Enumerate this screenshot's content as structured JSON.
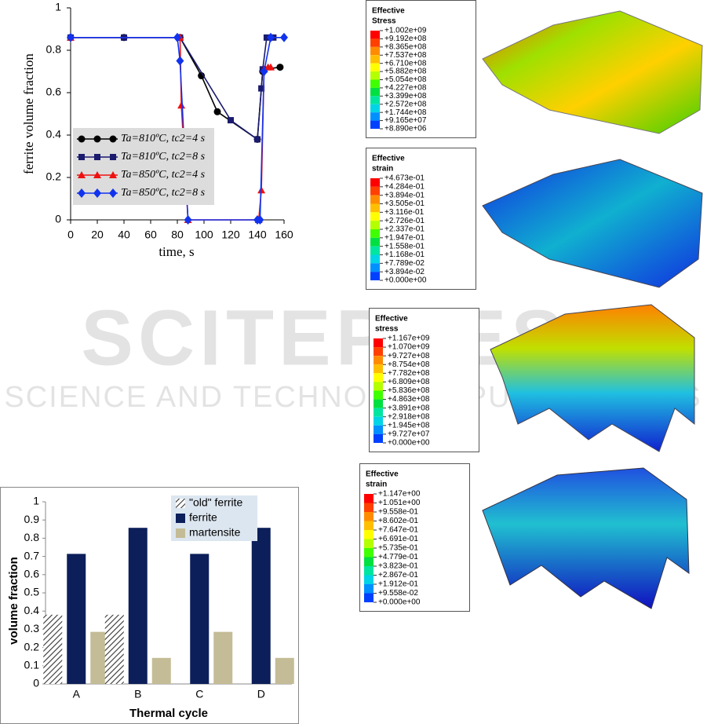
{
  "chart_data": [
    {
      "type": "line",
      "xlabel": "time, s",
      "ylabel": "ferrite volume fraction",
      "xlim": [
        0,
        160
      ],
      "xticks": [
        0,
        20,
        40,
        60,
        80,
        100,
        120,
        140,
        160
      ],
      "ylim": [
        0,
        1
      ],
      "yticks": [
        0,
        0.2,
        0.4,
        0.6,
        0.8,
        1
      ],
      "grid": false,
      "legend": "lower left",
      "series": [
        {
          "name": "Ta=810ºC, tc2=4 s",
          "color": "#000000",
          "marker": "circle",
          "x": [
            0,
            40,
            82,
            98,
            110,
            140,
            144,
            145,
            157
          ],
          "values": [
            0.86,
            0.86,
            0.86,
            0.68,
            0.51,
            0.38,
            0.7,
            0.71,
            0.72
          ]
        },
        {
          "name": "Ta=810ºC, tc2=8 s",
          "color": "#1a1a6e",
          "marker": "square",
          "x": [
            0,
            40,
            82,
            120,
            140,
            143,
            144,
            147,
            152
          ],
          "values": [
            0.86,
            0.86,
            0.86,
            0.47,
            0.38,
            0.62,
            0.71,
            0.86,
            0.86
          ]
        },
        {
          "name": "Ta=850ºC, tc2=4 s",
          "color": "#ee1111",
          "marker": "triangle",
          "x": [
            0,
            82,
            83,
            88,
            141,
            143,
            145,
            148,
            150
          ],
          "values": [
            0.86,
            0.86,
            0.54,
            0,
            0,
            0.14,
            0.71,
            0.72,
            0.72
          ]
        },
        {
          "name": "Ta=850ºC, tc2=8 s",
          "color": "#1133ee",
          "marker": "diamond",
          "x": [
            0,
            80,
            82,
            88,
            140,
            142,
            145,
            150,
            160
          ],
          "values": [
            0.86,
            0.86,
            0.75,
            0,
            0,
            0,
            0.7,
            0.86,
            0.86
          ]
        }
      ]
    },
    {
      "type": "bar",
      "xlabel": "Thermal cycle",
      "ylabel": "volume fraction",
      "categories": [
        "A",
        "B",
        "C",
        "D"
      ],
      "ylim": [
        0,
        1
      ],
      "yticks": [
        0,
        0.1,
        0.2,
        0.3,
        0.4,
        0.5,
        0.6,
        0.7,
        0.8,
        0.9,
        1
      ],
      "legend": "upper center",
      "series": [
        {
          "name": "\"old\" ferrite",
          "color": "hatch",
          "values": [
            0.38,
            0.38,
            0,
            0
          ]
        },
        {
          "name": "ferrite",
          "color": "#0c1f5a",
          "values": [
            0.714,
            0.857,
            0.714,
            0.857
          ]
        },
        {
          "name": "martensite",
          "color": "#c4bc96",
          "values": [
            0.286,
            0.143,
            0.286,
            0.143
          ]
        }
      ]
    }
  ],
  "fem_legends": {
    "scale_colors": [
      "#ff0000",
      "#ff4000",
      "#ff8c00",
      "#ffbf00",
      "#ffff00",
      "#b4ff00",
      "#40ff00",
      "#00e040",
      "#00e6a0",
      "#00d4e6",
      "#0090ff",
      "#0040ff",
      "#0000ff"
    ],
    "items": [
      {
        "title_lines": [
          "Effective",
          "Stress"
        ],
        "labels": [
          "+1.002e+09",
          "+9.192e+08",
          "+8.365e+08",
          "+7.537e+08",
          "+6.710e+08",
          "+5.882e+08",
          "+5.054e+08",
          "+4.227e+08",
          "+3.399e+08",
          "+2.572e+08",
          "+1.744e+08",
          "+9.165e+07",
          "+8.890e+06"
        ]
      },
      {
        "title_lines": [
          "Effective",
          "strain"
        ],
        "labels": [
          "+4.673e-01",
          "+4.284e-01",
          "+3.894e-01",
          "+3.505e-01",
          "+3.116e-01",
          "+2.726e-01",
          "+2.337e-01",
          "+1.947e-01",
          "+1.558e-01",
          "+1.168e-01",
          "+7.789e-02",
          "+3.894e-02",
          "+0.000e+00"
        ]
      },
      {
        "title_lines": [
          "Effective",
          "stress"
        ],
        "labels": [
          "+1.167e+09",
          "+1.070e+09",
          "+9.727e+08",
          "+8.754e+08",
          "+7.782e+08",
          "+6.809e+08",
          "+5.836e+08",
          "+4.863e+08",
          "+3.891e+08",
          "+2.918e+08",
          "+1.945e+08",
          "+9.727e+07",
          "+0.000e+00"
        ]
      },
      {
        "title_lines": [
          "Effective",
          "strain"
        ],
        "labels": [
          "+1.147e+00",
          "+1.051e+00",
          "+9.558e-01",
          "+8.602e-01",
          "+7.647e-01",
          "+6.691e-01",
          "+5.735e-01",
          "+4.779e-01",
          "+3.823e-01",
          "+2.867e-01",
          "+1.912e-01",
          "+9.558e-02",
          "+0.000e+00"
        ]
      }
    ]
  },
  "watermark": {
    "title": "SCITEPRESS",
    "subtitle": "SCIENCE AND TECHNOLOGY PUBLICATIONS"
  }
}
